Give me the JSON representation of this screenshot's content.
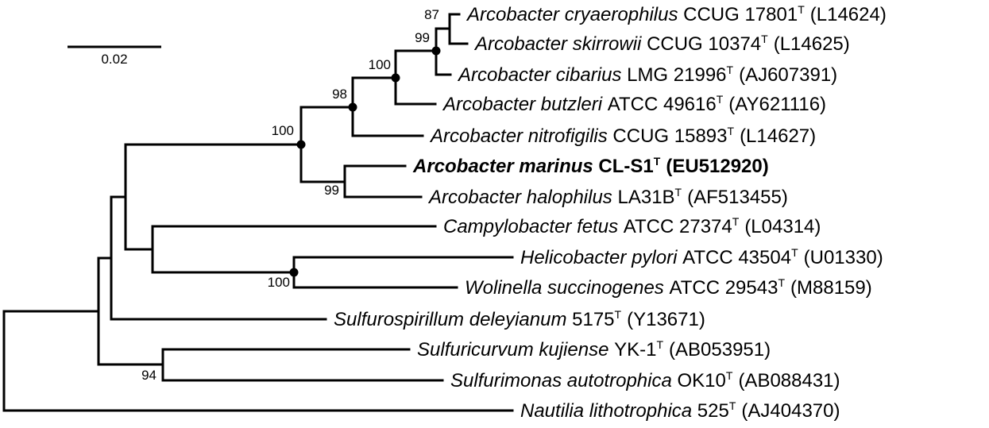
{
  "scale_bar": {
    "label": "0.02",
    "length": 0.02
  },
  "taxa": [
    {
      "id": "cryaerophilus",
      "species": "Arcobacter cryaerophilus",
      "strain": "CCUG 17801",
      "type_mark": "T",
      "accession": "(L14624)",
      "highlight": false
    },
    {
      "id": "skirrowii",
      "species": "Arcobacter skirrowii",
      "strain": "CCUG 10374",
      "type_mark": "T",
      "accession": "(L14625)",
      "highlight": false
    },
    {
      "id": "cibarius",
      "species": "Arcobacter cibarius",
      "strain": "LMG 21996",
      "type_mark": "T",
      "accession": "(AJ607391)",
      "highlight": false
    },
    {
      "id": "butzleri",
      "species": "Arcobacter butzleri",
      "strain": "ATCC 49616",
      "type_mark": "T",
      "accession": "(AY621116)",
      "highlight": false
    },
    {
      "id": "nitrofigilis",
      "species": "Arcobacter nitrofigilis",
      "strain": "CCUG 15893",
      "type_mark": "T",
      "accession": "(L14627)",
      "highlight": false
    },
    {
      "id": "marinus",
      "species": "Arcobacter marinus",
      "strain": "CL-S1",
      "type_mark": "T",
      "accession": "(EU512920)",
      "highlight": true
    },
    {
      "id": "halophilus",
      "species": "Arcobacter halophilus",
      "strain": "LA31B",
      "type_mark": "T",
      "accession": "(AF513455)",
      "highlight": false
    },
    {
      "id": "campylobacter",
      "species": "Campylobacter fetus",
      "strain": "ATCC 27374",
      "type_mark": "T",
      "accession": "(L04314)",
      "highlight": false
    },
    {
      "id": "helicobacter",
      "species": "Helicobacter pylori",
      "strain": "ATCC 43504",
      "type_mark": "T",
      "accession": "(U01330)",
      "highlight": false
    },
    {
      "id": "wolinella",
      "species": "Wolinella succinogenes",
      "strain": "ATCC 29543",
      "type_mark": "T",
      "accession": "(M88159)",
      "highlight": false
    },
    {
      "id": "sulfurospirillum",
      "species": "Sulfurospirillum deleyianum",
      "strain": "5175",
      "type_mark": "T",
      "accession": "(Y13671)",
      "highlight": false
    },
    {
      "id": "sulfuricurvum",
      "species": "Sulfuricurvum kujiense",
      "strain": "YK-1",
      "type_mark": "T",
      "accession": "(AB053951)",
      "highlight": false
    },
    {
      "id": "sulfurimonas",
      "species": "Sulfurimonas autotrophica",
      "strain": "OK10",
      "type_mark": "T",
      "accession": "(AB088431)",
      "highlight": false
    },
    {
      "id": "nautilia",
      "species": "Nautilia lithotrophica",
      "strain": "525",
      "type_mark": "T",
      "accession": "(AJ404370)",
      "highlight": false
    }
  ],
  "bootstrap": [
    {
      "node": "cryaerophilus-skirrowii",
      "value": "87"
    },
    {
      "node": "cryaerophilus-cibarius",
      "value": "99"
    },
    {
      "node": "cryaerophilus-butzleri",
      "value": "100"
    },
    {
      "node": "cryaerophilus-nitrofigilis",
      "value": "98"
    },
    {
      "node": "arcobacter",
      "value": "100"
    },
    {
      "node": "marinus-halophilus",
      "value": "99"
    },
    {
      "node": "helicobacter-wolinella",
      "value": "100"
    },
    {
      "node": "sulfuricurvum-sulfurimonas",
      "value": "94"
    }
  ]
}
